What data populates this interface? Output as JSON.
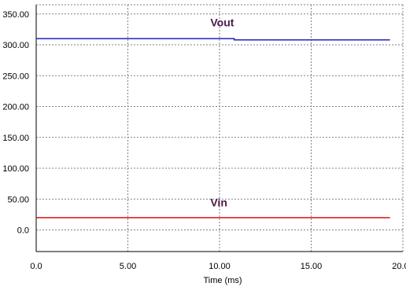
{
  "chart_data": {
    "type": "line",
    "title": "",
    "xlabel": "Time (ms)",
    "ylabel": "",
    "xlim": [
      0,
      20
    ],
    "ylim": [
      -35,
      365
    ],
    "x_ticks": [
      "0.0",
      "5.00",
      "10.00",
      "15.00",
      "20.00"
    ],
    "x_tick_values": [
      0,
      5,
      10,
      15,
      20
    ],
    "y_ticks": [
      "0.0",
      "50.00",
      "100.00",
      "150.00",
      "200.00",
      "250.00",
      "300.00",
      "350.00"
    ],
    "y_tick_values": [
      0,
      50,
      100,
      150,
      200,
      250,
      300,
      350
    ],
    "grid": true,
    "grid_style": "dashed",
    "legend": "none",
    "series": [
      {
        "name": "Vout",
        "color": "#2020c0",
        "label_color": "#4a1a4a",
        "x": [
          0,
          10.8,
          10.8,
          19.3
        ],
        "y": [
          310,
          310,
          308,
          308
        ],
        "label_at": [
          9.5,
          330
        ]
      },
      {
        "name": "Vin",
        "color": "#e01010",
        "label_color": "#4a1a4a",
        "x": [
          0,
          19.3
        ],
        "y": [
          20,
          20
        ],
        "label_at": [
          9.5,
          38
        ]
      }
    ]
  }
}
